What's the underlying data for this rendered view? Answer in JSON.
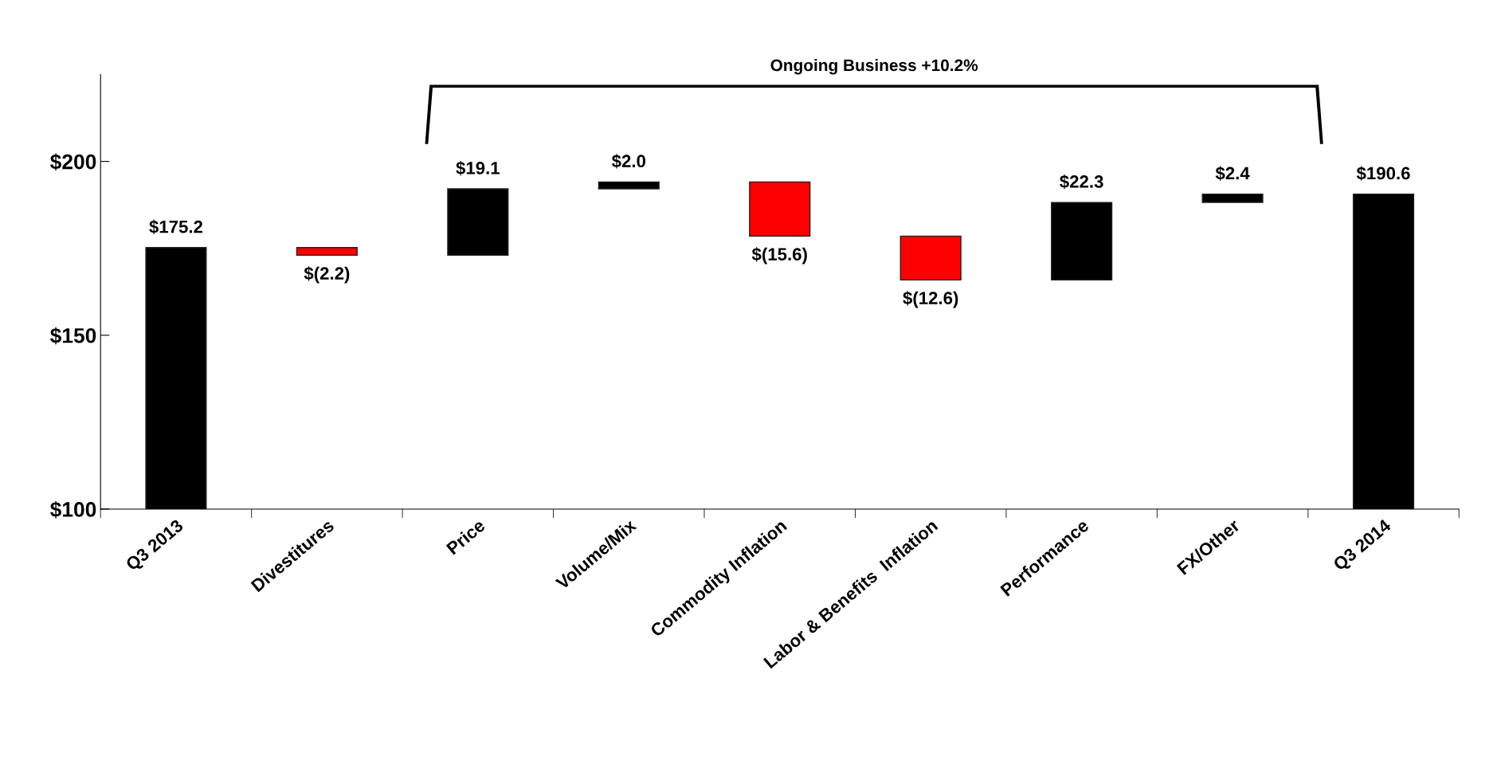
{
  "chart_data": {
    "type": "bar",
    "categories": [
      "Q3 2013",
      "Divestitures",
      "Price",
      "Volume/Mix",
      "Commodity Inflation",
      "Labor & Benefits  Inflation",
      "Performance",
      "FX/Other",
      "Q3 2014"
    ],
    "values": [
      175.2,
      -2.2,
      19.1,
      2.0,
      -15.6,
      -12.6,
      22.3,
      2.4,
      190.6
    ],
    "base": [
      0,
      175.2,
      173.0,
      192.1,
      194.1,
      178.5,
      165.9,
      188.2,
      0
    ],
    "colors": [
      "#000000",
      "#ff0000",
      "#000000",
      "#000000",
      "#ff0000",
      "#ff0000",
      "#000000",
      "#000000",
      "#000000"
    ],
    "value_labels": [
      "$175.2",
      "$(2.2)",
      "$19.1",
      "$2.0",
      "$(15.6)",
      "$(12.6)",
      "$22.3",
      "$2.4",
      "$190.6"
    ],
    "ylim": [
      100,
      225
    ],
    "yticks": [
      {
        "value": 100,
        "label": "$100"
      },
      {
        "value": 150,
        "label": "$150"
      },
      {
        "value": 200,
        "label": "$200"
      }
    ],
    "annotations": [
      "Ongoing Business +10.2%"
    ],
    "grid": false
  }
}
